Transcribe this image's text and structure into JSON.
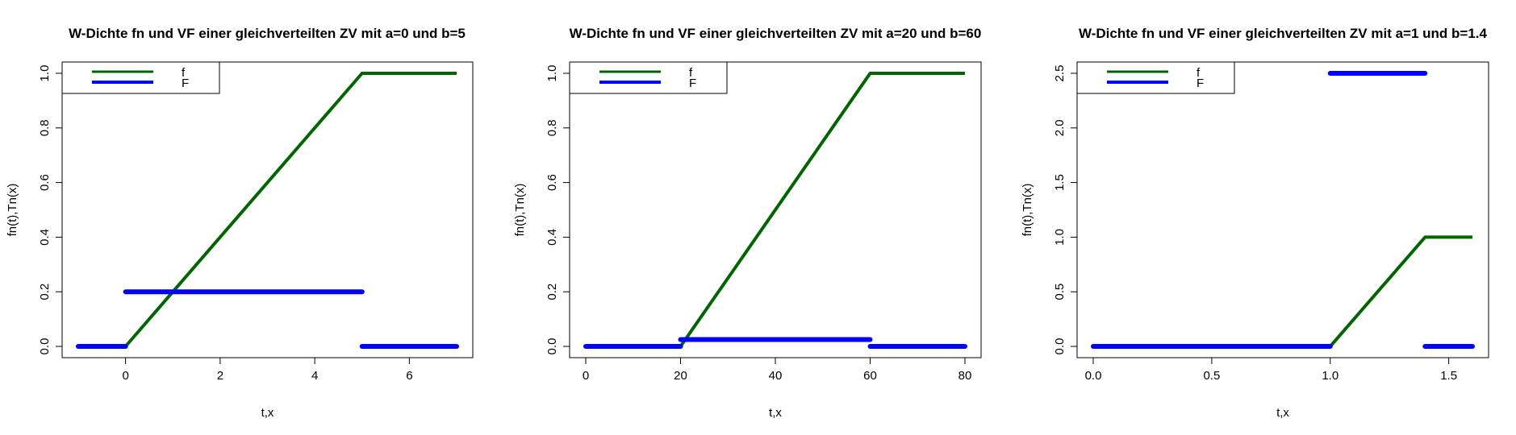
{
  "chart_data": [
    {
      "type": "line",
      "title": "W-Dichte fn und VF einer gleichverteilten ZV mit a=0 und b=5",
      "xlabel": "t,x",
      "ylabel": "fn(t),Tn(x)",
      "xlim": [
        -1,
        7
      ],
      "ylim": [
        0,
        1
      ],
      "xticks": [
        0,
        2,
        4,
        6
      ],
      "yticks": [
        0.0,
        0.2,
        0.4,
        0.6,
        0.8,
        1.0
      ],
      "ytick_labels": [
        "0.0",
        "0.2",
        "0.4",
        "0.6",
        "0.8",
        "1.0"
      ],
      "legend": {
        "position": "top-left",
        "entries": [
          "f",
          "F"
        ]
      },
      "series": [
        {
          "name": "f",
          "color": "#006400",
          "segments": [
            {
              "x": [
                -1,
                0,
                5,
                7
              ],
              "y": [
                0,
                0,
                1,
                1
              ]
            }
          ]
        },
        {
          "name": "F",
          "color": "#0000ff",
          "segments": [
            {
              "x": [
                -1,
                0
              ],
              "y": [
                0,
                0
              ]
            },
            {
              "x": [
                0,
                5
              ],
              "y": [
                0.2,
                0.2
              ]
            },
            {
              "x": [
                5,
                7
              ],
              "y": [
                0,
                0
              ]
            }
          ]
        }
      ]
    },
    {
      "type": "line",
      "title": "W-Dichte fn und VF einer gleichverteilten ZV mit a=20 und b=60",
      "xlabel": "t,x",
      "ylabel": "fn(t),Tn(x)",
      "xlim": [
        0,
        80
      ],
      "ylim": [
        0,
        1
      ],
      "xticks": [
        0,
        20,
        40,
        60,
        80
      ],
      "yticks": [
        0.0,
        0.2,
        0.4,
        0.6,
        0.8,
        1.0
      ],
      "ytick_labels": [
        "0.0",
        "0.2",
        "0.4",
        "0.6",
        "0.8",
        "1.0"
      ],
      "legend": {
        "position": "top-left",
        "entries": [
          "f",
          "F"
        ]
      },
      "series": [
        {
          "name": "f",
          "color": "#006400",
          "segments": [
            {
              "x": [
                0,
                20,
                60,
                80
              ],
              "y": [
                0,
                0,
                1,
                1
              ]
            }
          ]
        },
        {
          "name": "F",
          "color": "#0000ff",
          "segments": [
            {
              "x": [
                0,
                20
              ],
              "y": [
                0,
                0
              ]
            },
            {
              "x": [
                20,
                60
              ],
              "y": [
                0.025,
                0.025
              ]
            },
            {
              "x": [
                60,
                80
              ],
              "y": [
                0,
                0
              ]
            }
          ]
        }
      ]
    },
    {
      "type": "line",
      "title": "W-Dichte fn und VF einer gleichverteilten ZV mit a=1 und b=1.4",
      "xlabel": "t,x",
      "ylabel": "fn(t),Tn(x)",
      "xlim": [
        0,
        1.6
      ],
      "ylim": [
        0,
        2.5
      ],
      "xticks": [
        0.0,
        0.5,
        1.0,
        1.5
      ],
      "xtick_labels": [
        "0.0",
        "0.5",
        "1.0",
        "1.5"
      ],
      "yticks": [
        0.0,
        0.5,
        1.0,
        1.5,
        2.0,
        2.5
      ],
      "ytick_labels": [
        "0.0",
        "0.5",
        "1.0",
        "1.5",
        "2.0",
        "2.5"
      ],
      "legend": {
        "position": "top-left",
        "entries": [
          "f",
          "F"
        ]
      },
      "series": [
        {
          "name": "f",
          "color": "#006400",
          "segments": [
            {
              "x": [
                0,
                1,
                1.4,
                1.6
              ],
              "y": [
                0,
                0,
                1,
                1
              ]
            }
          ]
        },
        {
          "name": "F",
          "color": "#0000ff",
          "segments": [
            {
              "x": [
                0,
                1
              ],
              "y": [
                0,
                0
              ]
            },
            {
              "x": [
                1,
                1.4
              ],
              "y": [
                2.5,
                2.5
              ]
            },
            {
              "x": [
                1.4,
                1.6
              ],
              "y": [
                0,
                0
              ]
            }
          ]
        }
      ]
    }
  ]
}
